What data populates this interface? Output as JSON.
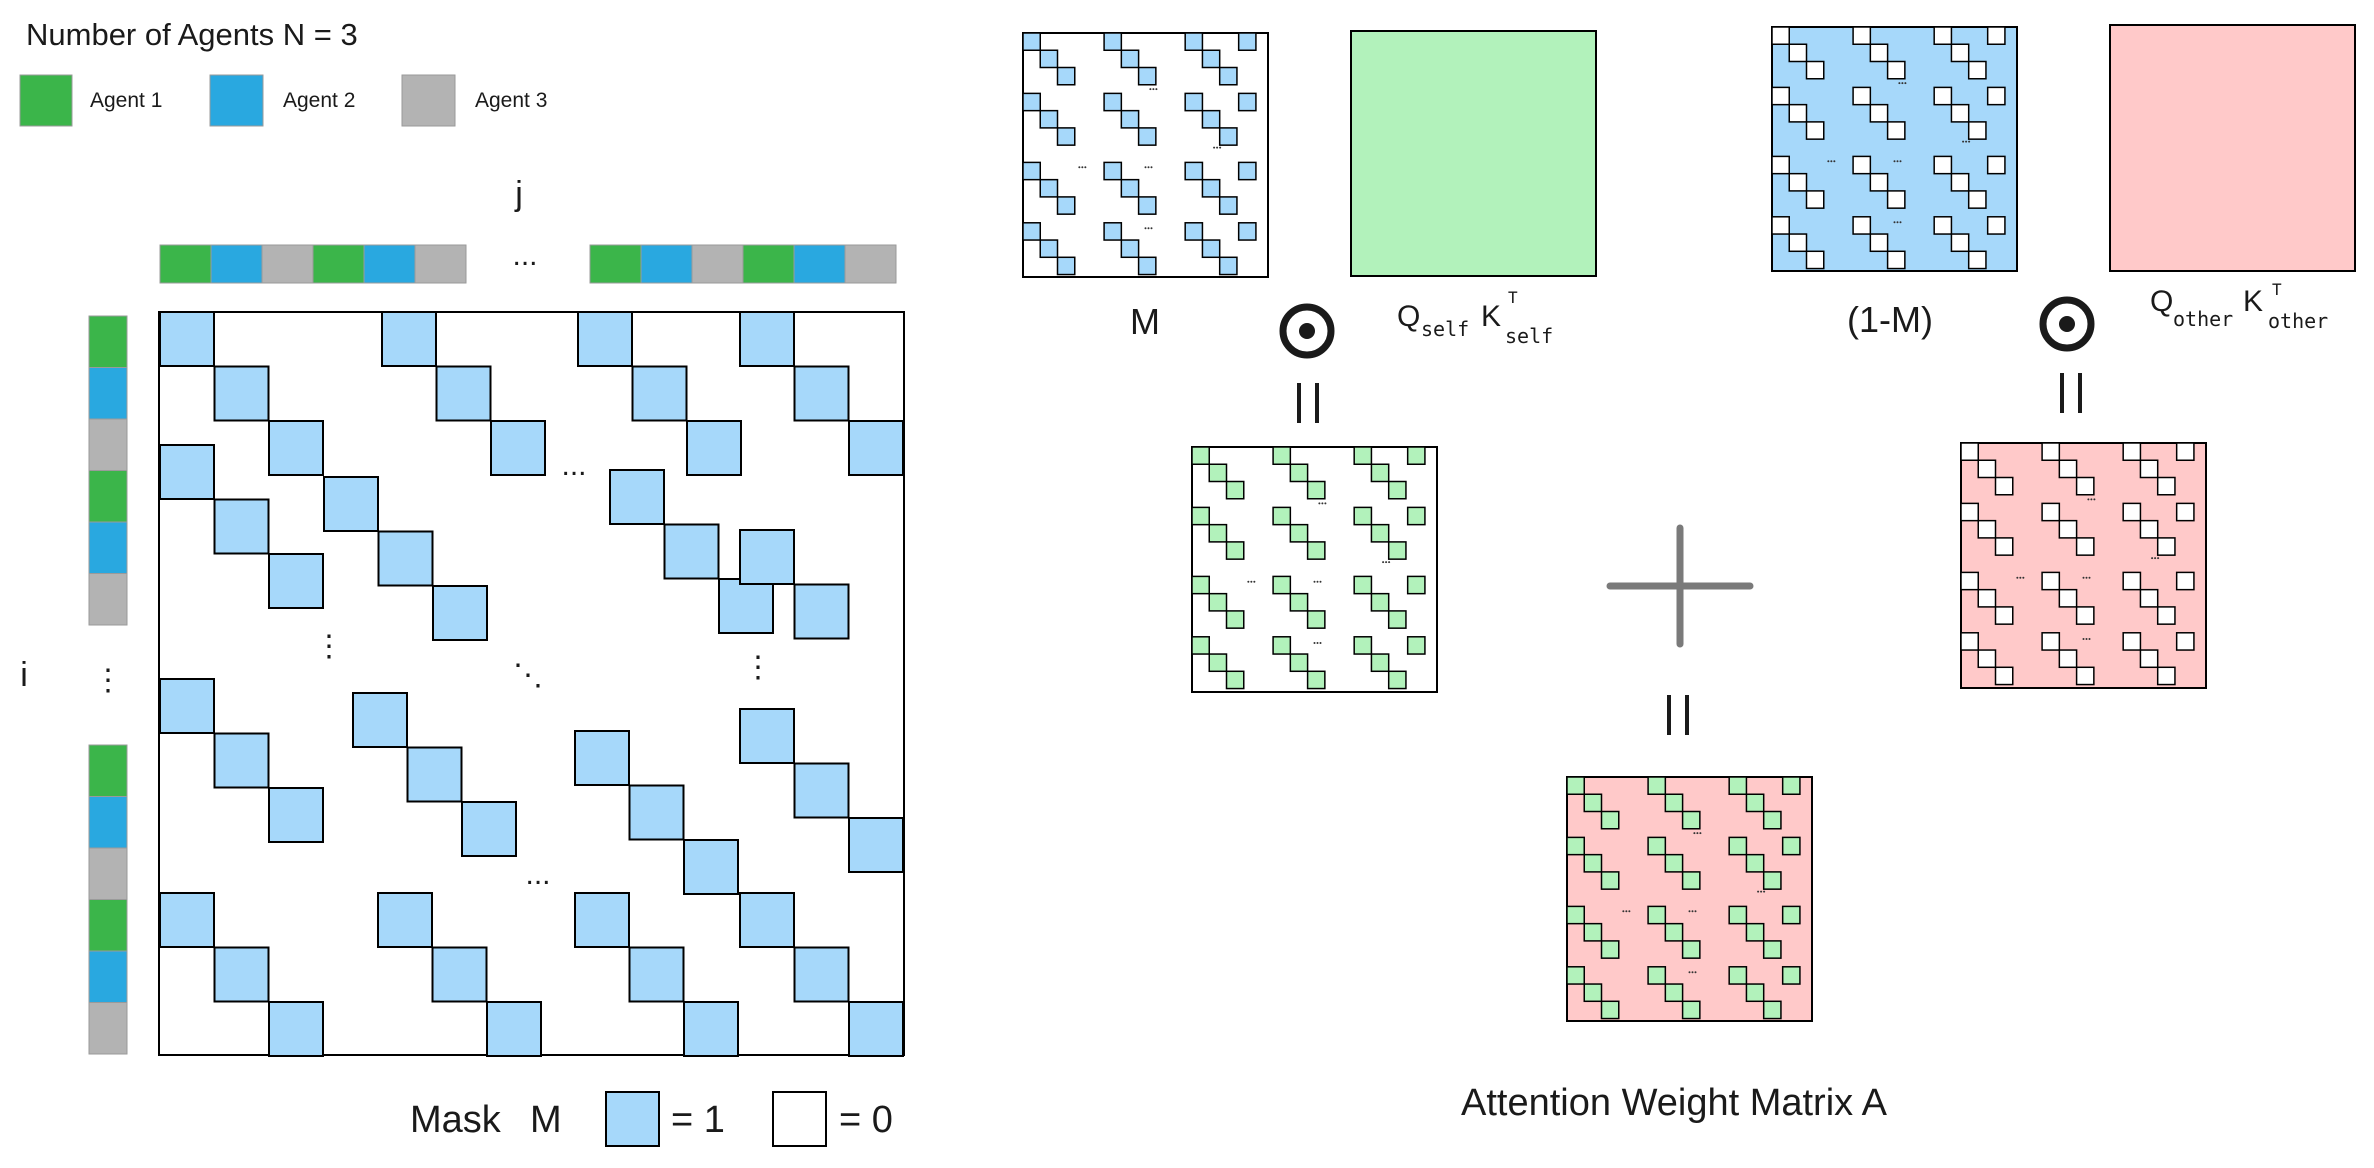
{
  "header": {
    "title": "Number of Agents N = 3",
    "agents": [
      {
        "label": "Agent 1",
        "color": "#3bb54a"
      },
      {
        "label": "Agent 2",
        "color": "#29a8e0"
      },
      {
        "label": "Agent 3",
        "color": "#b3b3b3"
      }
    ]
  },
  "mask_panel": {
    "col_index": "j",
    "row_index": "i",
    "ellipsis": "...",
    "vertical_ellipsis": "⋮",
    "diagonal_ellipsis": "⋱",
    "legend": {
      "prefix": "Mask",
      "symbol": "M",
      "one_label": "= 1",
      "zero_label": "= 0"
    }
  },
  "formula": {
    "mask_label": "M",
    "inv_mask_label": "(1-M)",
    "hadamard_symbol": "⊙",
    "equals_symbol": "||",
    "plus_symbol": "+",
    "self_q": "Q",
    "self_q_sub": "self",
    "self_k": "K",
    "self_k_sup": "T",
    "self_k_sub": "self",
    "other_q": "Q",
    "other_q_sub": "other",
    "other_k": "K",
    "other_k_sup": "T",
    "other_k_sub": "other",
    "result_label": "Attention Weight Matrix A"
  },
  "colors": {
    "mask_cell": "#a6d8fa",
    "self_fill": "#b2f2bb",
    "self_cell": "#b2f2bb",
    "other_fill": "#ffc9c9",
    "inv_mask_fill": "#a6d8fa",
    "operator_gray": "#7a7a7a"
  }
}
